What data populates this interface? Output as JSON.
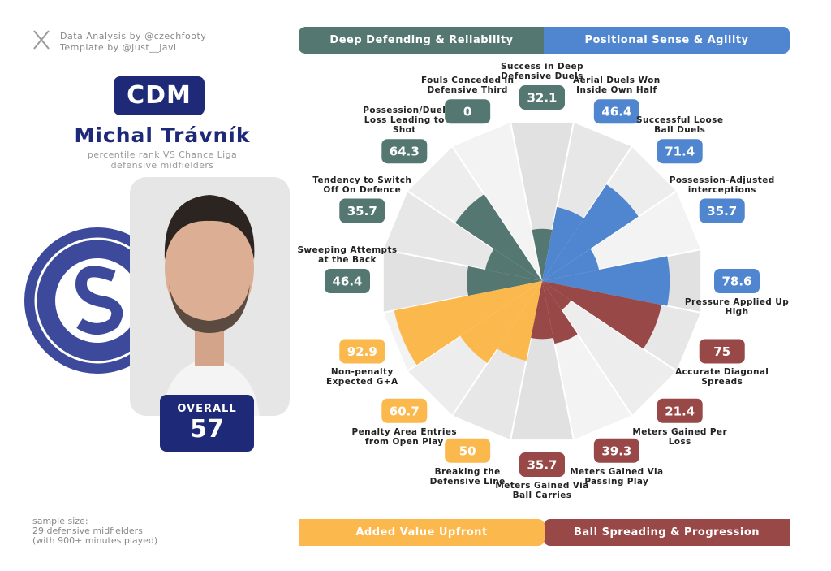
{
  "header": {
    "credit_data": "Data Analysis by @czechfooty",
    "credit_template": "Template by @just__javi"
  },
  "player": {
    "position": "CDM",
    "name": "Michal Trávník",
    "comparison": "percentile rank VS Chance Liga defensive midfielders",
    "overall_label": "OVERALL",
    "overall": 57
  },
  "footer": {
    "lines": [
      "sample size:",
      "29 defensive midfielders",
      "(with 900+ minutes played)"
    ]
  },
  "chart_data": {
    "type": "pizza",
    "rlim": [
      0,
      100
    ],
    "series": [
      {
        "name": "Deep Defending & Reliability",
        "color": "#547871",
        "categories": [
          "Sweeping Attempts at the Back",
          "Tendency to Switch Off On Defence",
          "Possession/Duel Loss Leading to Shot",
          "Fouls Conceded in Defensive Third",
          "Success in Deep Defensive Duels"
        ],
        "values": [
          46.4,
          35.7,
          64.3,
          0,
          32.1
        ]
      },
      {
        "name": "Positional Sense & Agility",
        "color": "#4f86cf",
        "categories": [
          "Aerial Duels Won Inside Own Half",
          "Successful Loose Ball Duels",
          "Possession-Adjusted interceptions",
          "Pressure Applied Up High"
        ],
        "values": [
          46.4,
          71.4,
          35.7,
          78.6
        ]
      },
      {
        "name": "Ball Spreading & Progression",
        "color": "#994848",
        "categories": [
          "Accurate Diagonal Spreads",
          "Meters Gained Per Loss",
          "Meters Gained Via Passing Play",
          "Meters Gained Via Ball Carries"
        ],
        "values": [
          75,
          21.4,
          39.3,
          35.7
        ]
      },
      {
        "name": "Added Value Upfront",
        "color": "#fbb84d",
        "categories": [
          "Breaking the Defensive Line",
          "Penalty Area Entries from Open Play",
          "Non-penalty Expected G+A"
        ],
        "values": [
          50,
          60.7,
          92.9
        ]
      }
    ]
  }
}
